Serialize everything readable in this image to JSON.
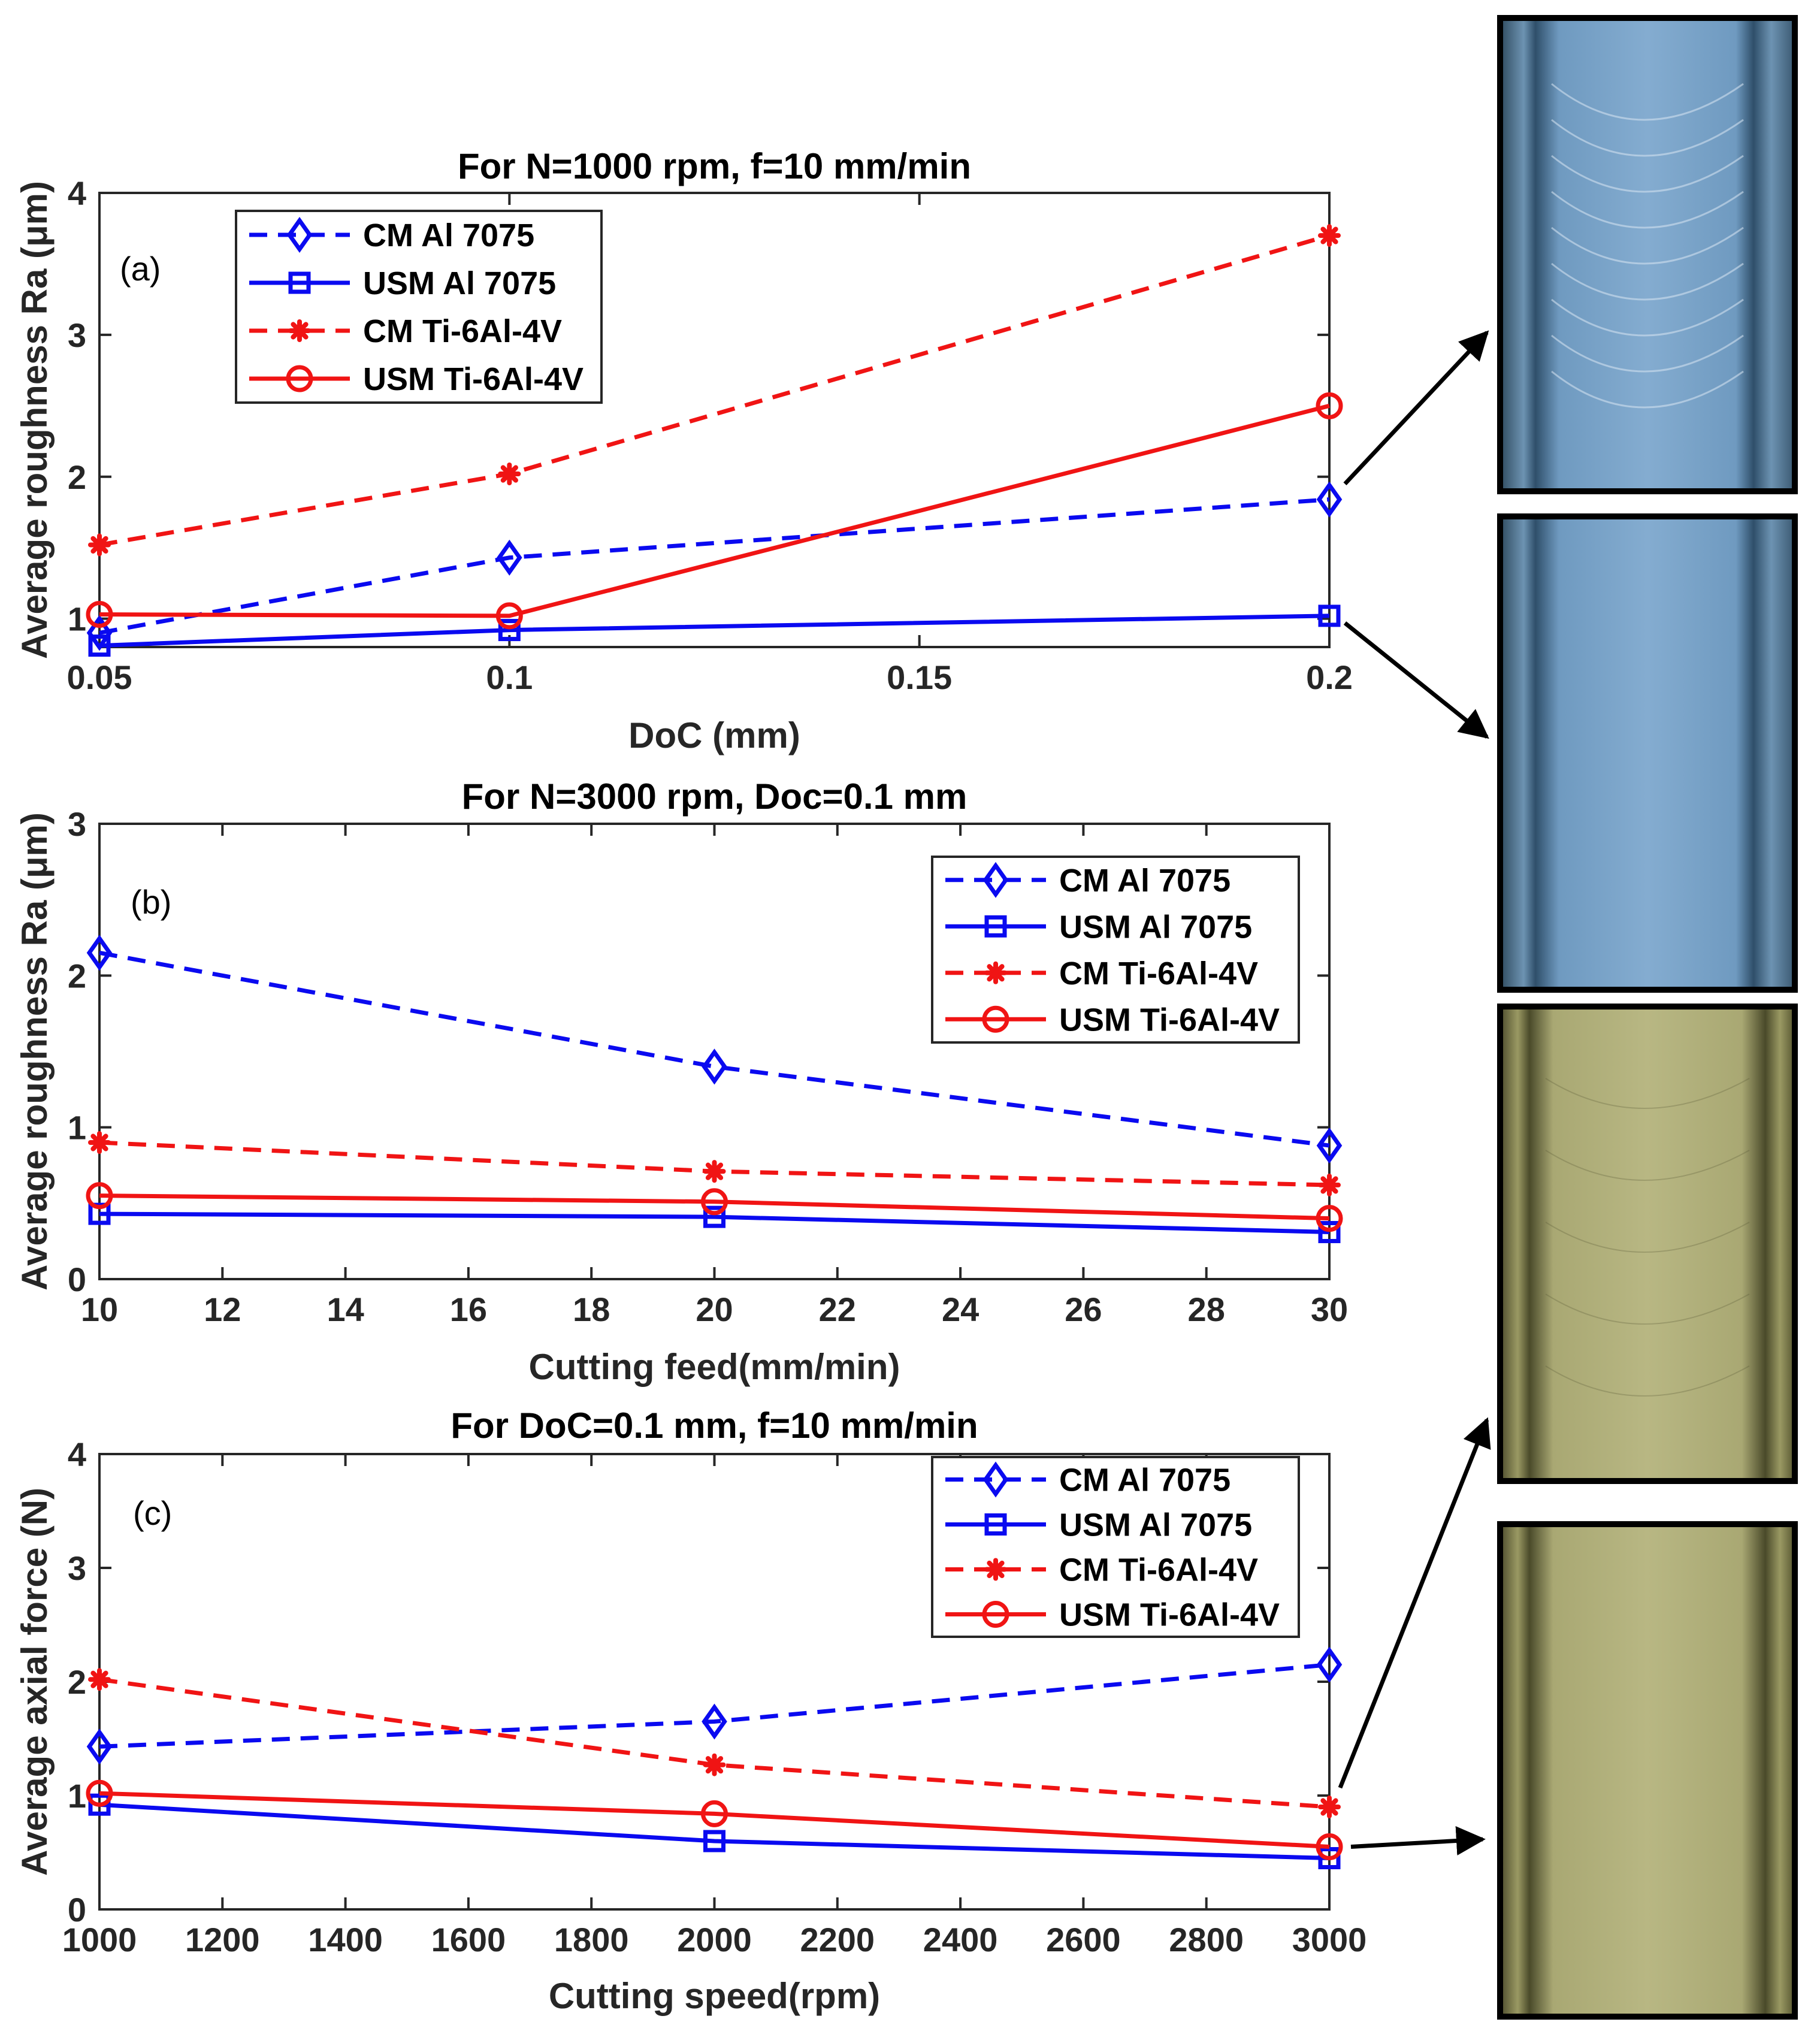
{
  "colors": {
    "blue": "#0a0af0",
    "red": "#f01414",
    "axis": "#262626",
    "grid": "#ffffff"
  },
  "legend_entries": [
    {
      "key": "cm_al",
      "label": "CM Al 7075",
      "color": "#0a0af0",
      "dash": true,
      "marker": "diamond"
    },
    {
      "key": "usm_al",
      "label": "USM Al 7075",
      "color": "#0a0af0",
      "dash": false,
      "marker": "square"
    },
    {
      "key": "cm_ti",
      "label": "CM Ti-6Al-4V",
      "color": "#f01414",
      "dash": true,
      "marker": "asterisk"
    },
    {
      "key": "usm_ti",
      "label": "USM Ti-6Al-4V",
      "color": "#f01414",
      "dash": false,
      "marker": "circle"
    }
  ],
  "chart_data": [
    {
      "id": "a",
      "type": "line",
      "panel_label": "(a)",
      "title": "For N=1000 rpm, f=10 mm/min",
      "xlabel": "DoC (mm)",
      "ylabel": "Average roughness Ra (μm)",
      "x": [
        0.05,
        0.1,
        0.2
      ],
      "xlim": [
        0.05,
        0.2
      ],
      "ylim": [
        0.8,
        4
      ],
      "xticks": [
        0.05,
        0.1,
        0.15,
        0.2
      ],
      "xtick_labels": [
        "0.05",
        "0.1",
        "0.15",
        "0.2"
      ],
      "yticks": [
        1,
        2,
        3,
        4
      ],
      "ytick_labels": [
        "1",
        "2",
        "3",
        "4"
      ],
      "legend_position": "top-left",
      "series": [
        {
          "name": "CM Al 7075",
          "key": "cm_al",
          "values": [
            0.9,
            1.43,
            1.84
          ]
        },
        {
          "name": "USM Al 7075",
          "key": "usm_al",
          "values": [
            0.81,
            0.92,
            1.02
          ]
        },
        {
          "name": "CM Ti-6Al-4V",
          "key": "cm_ti",
          "values": [
            1.52,
            2.02,
            3.7
          ]
        },
        {
          "name": "USM Ti-6Al-4V",
          "key": "usm_ti",
          "values": [
            1.03,
            1.02,
            2.5
          ]
        }
      ]
    },
    {
      "id": "b",
      "type": "line",
      "panel_label": "(b)",
      "title": "For N=3000 rpm, Doc=0.1 mm",
      "xlabel": "Cutting feed(mm/min)",
      "ylabel": "Average roughness Ra (μm)",
      "x": [
        10,
        20,
        30
      ],
      "xlim": [
        10,
        30
      ],
      "ylim": [
        0,
        3
      ],
      "xticks": [
        10,
        12,
        14,
        16,
        18,
        20,
        22,
        24,
        26,
        28,
        30
      ],
      "xtick_labels": [
        "10",
        "12",
        "14",
        "16",
        "18",
        "20",
        "22",
        "24",
        "26",
        "28",
        "30"
      ],
      "yticks": [
        0,
        1,
        2,
        3
      ],
      "ytick_labels": [
        "0",
        "1",
        "2",
        "3"
      ],
      "legend_position": "top-right",
      "series": [
        {
          "name": "CM Al 7075",
          "key": "cm_al",
          "values": [
            2.15,
            1.4,
            0.88
          ]
        },
        {
          "name": "USM Al 7075",
          "key": "usm_al",
          "values": [
            0.43,
            0.41,
            0.31
          ]
        },
        {
          "name": "CM Ti-6Al-4V",
          "key": "cm_ti",
          "values": [
            0.9,
            0.71,
            0.62
          ]
        },
        {
          "name": "USM Ti-6Al-4V",
          "key": "usm_ti",
          "values": [
            0.55,
            0.51,
            0.4
          ]
        }
      ]
    },
    {
      "id": "c",
      "type": "line",
      "panel_label": "(c)",
      "title": "For DoC=0.1 mm, f=10 mm/min",
      "xlabel": "Cutting speed(rpm)",
      "ylabel": "Average axial force (N)",
      "x": [
        1000,
        2000,
        3000
      ],
      "xlim": [
        1000,
        3000
      ],
      "ylim": [
        0,
        4
      ],
      "xticks": [
        1000,
        1200,
        1400,
        1600,
        1800,
        2000,
        2200,
        2400,
        2600,
        2800,
        3000
      ],
      "xtick_labels": [
        "1000",
        "1200",
        "1400",
        "1600",
        "1800",
        "2000",
        "2200",
        "2400",
        "2600",
        "2800",
        "3000"
      ],
      "yticks": [
        0,
        1,
        2,
        3,
        4
      ],
      "ytick_labels": [
        "0",
        "1",
        "2",
        "3",
        "4"
      ],
      "legend_position": "top-right",
      "series": [
        {
          "name": "CM Al 7075",
          "key": "cm_al",
          "values": [
            1.43,
            1.65,
            2.15
          ]
        },
        {
          "name": "USM Al 7075",
          "key": "usm_al",
          "values": [
            0.92,
            0.6,
            0.45
          ]
        },
        {
          "name": "CM Ti-6Al-4V",
          "key": "cm_ti",
          "values": [
            2.02,
            1.27,
            0.9
          ]
        },
        {
          "name": "USM Ti-6Al-4V",
          "key": "usm_ti",
          "values": [
            1.02,
            0.84,
            0.55
          ]
        }
      ]
    }
  ],
  "micrographs": [
    {
      "id": "m1",
      "surface": "Al 7075 conventional machining",
      "tone": "blue",
      "linked_panel": "a",
      "linked_series": "cm_al",
      "linked_x": 0.2
    },
    {
      "id": "m2",
      "surface": "Al 7075 ultrasonic machining",
      "tone": "blue",
      "linked_panel": "a",
      "linked_series": "usm_al",
      "linked_x": 0.2
    },
    {
      "id": "m3",
      "surface": "Ti-6Al-4V conventional machining",
      "tone": "yellow",
      "linked_panel": "c",
      "linked_series": "cm_ti",
      "linked_x": 3000
    },
    {
      "id": "m4",
      "surface": "Ti-6Al-4V ultrasonic machining",
      "tone": "yellow",
      "linked_panel": "c",
      "linked_series": "usm_ti",
      "linked_x": 3000
    }
  ]
}
